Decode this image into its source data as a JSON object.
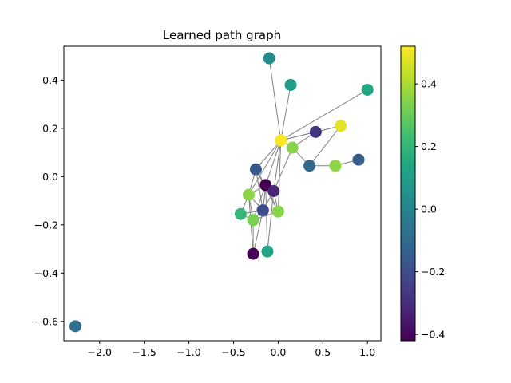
{
  "chart_data": {
    "type": "scatter",
    "title": "Learned path graph",
    "xlim": [
      -2.4,
      1.15
    ],
    "ylim": [
      -0.68,
      0.54
    ],
    "xticks": [
      -2.0,
      -1.5,
      -1.0,
      -0.5,
      0.0,
      0.5,
      1.0
    ],
    "xtick_labels": [
      "−2.0",
      "−1.5",
      "−1.0",
      "−0.5",
      "0.0",
      "0.5",
      "1.0"
    ],
    "yticks": [
      0.4,
      0.2,
      0.0,
      -0.2,
      -0.4,
      -0.6
    ],
    "ytick_labels": [
      "0.4",
      "0.2",
      "0.0",
      "−0.2",
      "−0.4",
      "−0.6"
    ],
    "grid": false,
    "colorbar": {
      "colormap": "viridis",
      "range": [
        -0.42,
        0.52
      ],
      "ticks": [
        0.4,
        0.2,
        0.0,
        -0.2,
        -0.4
      ],
      "tick_labels": [
        "0.4",
        "0.2",
        "0.0",
        "−0.2",
        "−0.4"
      ]
    },
    "edge_color": "#808080",
    "nodes": [
      {
        "x": -0.1,
        "y": 0.49,
        "value": 0.03
      },
      {
        "x": 0.14,
        "y": 0.38,
        "value": 0.1
      },
      {
        "x": 1.0,
        "y": 0.36,
        "value": 0.14
      },
      {
        "x": 0.7,
        "y": 0.21,
        "value": 0.48
      },
      {
        "x": 0.42,
        "y": 0.185,
        "value": -0.28
      },
      {
        "x": 0.03,
        "y": 0.15,
        "value": 0.52
      },
      {
        "x": 0.16,
        "y": 0.12,
        "value": 0.35
      },
      {
        "x": 0.35,
        "y": 0.045,
        "value": -0.1
      },
      {
        "x": 0.64,
        "y": 0.045,
        "value": 0.36
      },
      {
        "x": 0.9,
        "y": 0.07,
        "value": -0.14
      },
      {
        "x": -0.25,
        "y": 0.03,
        "value": -0.16
      },
      {
        "x": -0.14,
        "y": -0.035,
        "value": -0.42
      },
      {
        "x": -0.05,
        "y": -0.06,
        "value": -0.32
      },
      {
        "x": -0.33,
        "y": -0.075,
        "value": 0.36
      },
      {
        "x": -0.17,
        "y": -0.14,
        "value": -0.2
      },
      {
        "x": 0.0,
        "y": -0.145,
        "value": 0.35
      },
      {
        "x": -0.42,
        "y": -0.155,
        "value": 0.2
      },
      {
        "x": -0.28,
        "y": -0.18,
        "value": 0.33
      },
      {
        "x": -0.28,
        "y": -0.32,
        "value": -0.42
      },
      {
        "x": -0.12,
        "y": -0.31,
        "value": 0.12
      },
      {
        "x": -2.27,
        "y": -0.62,
        "value": -0.08
      }
    ],
    "edges": [
      [
        0,
        5
      ],
      [
        1,
        5
      ],
      [
        2,
        5
      ],
      [
        3,
        5
      ],
      [
        3,
        4
      ],
      [
        4,
        5
      ],
      [
        4,
        6
      ],
      [
        3,
        7
      ],
      [
        7,
        8
      ],
      [
        8,
        9
      ],
      [
        5,
        6
      ],
      [
        6,
        7
      ],
      [
        5,
        10
      ],
      [
        5,
        11
      ],
      [
        5,
        12
      ],
      [
        5,
        13
      ],
      [
        5,
        15
      ],
      [
        6,
        12
      ],
      [
        10,
        11
      ],
      [
        10,
        13
      ],
      [
        10,
        14
      ],
      [
        10,
        15
      ],
      [
        11,
        12
      ],
      [
        11,
        13
      ],
      [
        11,
        14
      ],
      [
        11,
        15
      ],
      [
        11,
        17
      ],
      [
        12,
        14
      ],
      [
        12,
        15
      ],
      [
        12,
        19
      ],
      [
        13,
        14
      ],
      [
        13,
        16
      ],
      [
        13,
        17
      ],
      [
        14,
        16
      ],
      [
        14,
        17
      ],
      [
        14,
        18
      ],
      [
        15,
        17
      ],
      [
        16,
        17
      ],
      [
        17,
        18
      ],
      [
        13,
        18
      ],
      [
        11,
        19
      ]
    ]
  }
}
